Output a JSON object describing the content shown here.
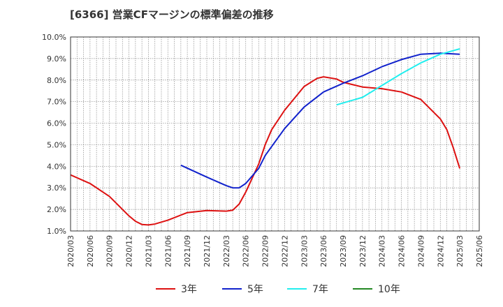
{
  "chart_data": {
    "type": "line",
    "title": "[6366]  営業CFマージンの標準偏差の推移",
    "y_tick_labels": [
      "1.0%",
      "2.0%",
      "3.0%",
      "4.0%",
      "5.0%",
      "6.0%",
      "7.0%",
      "8.0%",
      "9.0%",
      "10.0%"
    ],
    "x_tick_labels": [
      "2020/03",
      "2020/06",
      "2020/09",
      "2020/12",
      "2021/03",
      "2021/06",
      "2021/09",
      "2021/12",
      "2022/03",
      "2022/06",
      "2022/09",
      "2022/12",
      "2023/03",
      "2023/06",
      "2023/09",
      "2023/12",
      "2024/03",
      "2024/06",
      "2024/09",
      "2024/12",
      "2025/03",
      "2025/06"
    ],
    "ylim": [
      1.0,
      10.0
    ],
    "grid": true,
    "legend_position": "bottom",
    "series": [
      {
        "name": "3年",
        "color": "#dd1111",
        "x": [
          "2020/03",
          "2020/06",
          "2020/09",
          "2020/12",
          "2021/01",
          "2021/02",
          "2021/03",
          "2021/04",
          "2021/06",
          "2021/09",
          "2021/12",
          "2022/03",
          "2022/04",
          "2022/05",
          "2022/06",
          "2022/08",
          "2022/09",
          "2022/10",
          "2022/12",
          "2023/03",
          "2023/05",
          "2023/06",
          "2023/08",
          "2023/09",
          "2023/12",
          "2024/03",
          "2024/06",
          "2024/09",
          "2024/12",
          "2025/01",
          "2025/02",
          "2025/03"
        ],
        "values": [
          3.6,
          3.2,
          2.6,
          1.7,
          1.45,
          1.3,
          1.28,
          1.32,
          1.5,
          1.85,
          1.95,
          1.92,
          1.96,
          2.25,
          2.8,
          4.1,
          5.0,
          5.7,
          6.6,
          7.7,
          8.08,
          8.15,
          8.05,
          7.9,
          7.68,
          7.6,
          7.45,
          7.1,
          6.2,
          5.7,
          4.85,
          3.9
        ]
      },
      {
        "name": "5年",
        "color": "#1122cc",
        "x": [
          "2021/08",
          "2021/12",
          "2022/03",
          "2022/04",
          "2022/05",
          "2022/06",
          "2022/08",
          "2022/09",
          "2022/12",
          "2023/03",
          "2023/06",
          "2023/09",
          "2023/12",
          "2024/03",
          "2024/06",
          "2024/09",
          "2024/12",
          "2025/03"
        ],
        "values": [
          4.05,
          3.5,
          3.1,
          3.0,
          3.0,
          3.2,
          3.9,
          4.5,
          5.75,
          6.75,
          7.45,
          7.85,
          8.2,
          8.62,
          8.95,
          9.2,
          9.25,
          9.2
        ]
      },
      {
        "name": "7年",
        "color": "#22eeee",
        "x": [
          "2023/08",
          "2023/12",
          "2024/03",
          "2024/06",
          "2024/09",
          "2024/12",
          "2025/03"
        ],
        "values": [
          6.85,
          7.2,
          7.75,
          8.3,
          8.8,
          9.2,
          9.45
        ]
      },
      {
        "name": "10年",
        "color": "#228822",
        "x": [],
        "values": []
      }
    ]
  }
}
